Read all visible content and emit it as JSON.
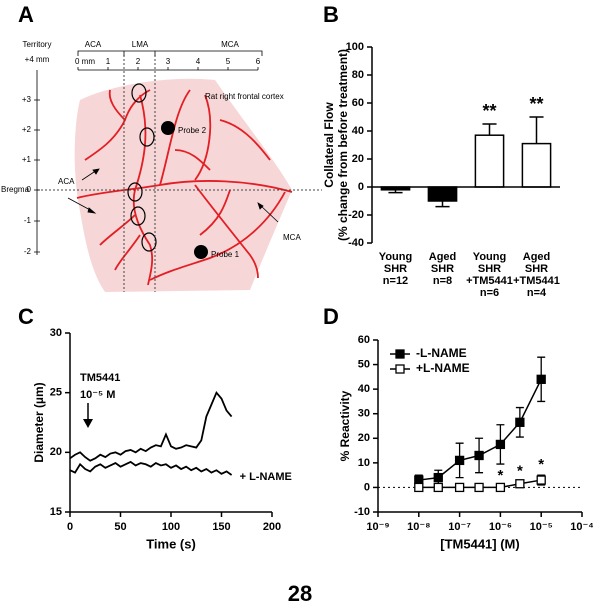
{
  "diagram": {
    "panel": "A",
    "territory_label": "Territory",
    "top_mark": "+4 mm",
    "territories": [
      "ACA",
      "LMA",
      "MCA"
    ],
    "scale_labels": [
      "0 mm",
      "1",
      "2",
      "3",
      "4",
      "5",
      "6"
    ],
    "region_label": "Rat right frontal cortex",
    "y_labels": [
      "+3",
      "+2",
      "+1",
      "0",
      "-1",
      "-2"
    ],
    "bregma_label": "Bregma",
    "vessel_labels": [
      "ACA",
      "MCA"
    ],
    "probes": [
      "Probe 2",
      "Probe 1"
    ]
  },
  "chart_data": [
    {
      "type": "bar",
      "panel": "B",
      "ylabel": [
        "Collateral Flow",
        "(% change from before treatment)"
      ],
      "categories": [
        [
          "Young",
          "SHR",
          "n=12"
        ],
        [
          "Aged",
          "SHR",
          "n=8"
        ],
        [
          "Young",
          "SHR",
          "+TM5441",
          "n=6"
        ],
        [
          "Aged",
          "SHR",
          "+TM5441",
          "n=4"
        ]
      ],
      "values": [
        -2,
        -10,
        37,
        31
      ],
      "errors": [
        2,
        4,
        8,
        19
      ],
      "colors": [
        "#000000",
        "#000000",
        "#ffffff",
        "#ffffff"
      ],
      "annotations": [
        null,
        null,
        "**",
        "**"
      ],
      "ylim": [
        -40,
        100
      ],
      "yticks": [
        -40,
        -20,
        0,
        20,
        40,
        60,
        80,
        100
      ]
    },
    {
      "type": "line",
      "panel": "C",
      "xlabel": "Time (s)",
      "ylabel": "Diameter (µm)",
      "annotations": [
        "TM5441",
        "10⁻⁵ M"
      ],
      "x": [
        0,
        5,
        10,
        15,
        20,
        25,
        30,
        35,
        40,
        45,
        50,
        55,
        60,
        65,
        70,
        75,
        80,
        85,
        90,
        95,
        100,
        105,
        110,
        115,
        120,
        125,
        130,
        135,
        140,
        145,
        150,
        155,
        160
      ],
      "series": [
        {
          "color": "#000000",
          "values": [
            19.5,
            19.8,
            20.0,
            19.6,
            19.3,
            19.5,
            19.8,
            19.6,
            19.9,
            20.0,
            19.8,
            20.1,
            20.2,
            20.0,
            20.3,
            20.1,
            20.4,
            20.6,
            20.5,
            21.5,
            20.5,
            20.3,
            20.4,
            20.6,
            20.5,
            20.4,
            21.0,
            23.0,
            24.0,
            25.0,
            24.5,
            23.5,
            23.0
          ]
        },
        {
          "name": "+ L-NAME",
          "color": "#000000",
          "values": [
            18.5,
            18.3,
            19.0,
            18.6,
            18.4,
            18.8,
            19.0,
            18.7,
            18.9,
            19.1,
            18.8,
            19.0,
            19.2,
            18.9,
            19.1,
            19.0,
            18.8,
            19.1,
            18.9,
            19.0,
            18.7,
            18.9,
            18.6,
            18.8,
            18.5,
            18.7,
            18.4,
            18.6,
            18.3,
            18.5,
            18.2,
            18.4,
            18.1
          ]
        }
      ],
      "xlim": [
        0,
        200
      ],
      "xticks": [
        0,
        50,
        100,
        150,
        200
      ],
      "ylim": [
        15,
        30
      ],
      "yticks": [
        15,
        20,
        25,
        30
      ]
    },
    {
      "type": "line",
      "panel": "D",
      "xlabel": "[TM5441] (M)",
      "ylabel": "% Reactivity",
      "xscale": "log",
      "legend": "upper left",
      "reference_line": 0,
      "x": [
        1e-08,
        3e-08,
        1e-07,
        3e-07,
        1e-06,
        3e-06,
        1e-05
      ],
      "series": [
        {
          "name": "-L-NAME",
          "color": "#000000",
          "marker": "filled",
          "values": [
            3,
            4,
            11,
            13,
            17.5,
            26.5,
            44
          ],
          "errors": [
            2,
            3,
            7,
            7,
            8,
            6,
            9
          ]
        },
        {
          "name": "+L-NAME",
          "color": "#000000",
          "marker": "open",
          "values": [
            0,
            0,
            0,
            0,
            0,
            1.5,
            3
          ],
          "errors": [
            0.5,
            0.5,
            0.5,
            0.5,
            0.5,
            1,
            2
          ],
          "annotations": [
            null,
            null,
            null,
            null,
            "*",
            "*",
            "*"
          ]
        }
      ],
      "xlim": [
        1e-09,
        0.0001
      ],
      "xticks": [
        {
          "value": 1e-09,
          "label": "10⁻⁹"
        },
        {
          "value": 1e-08,
          "label": "10⁻⁸"
        },
        {
          "value": 1e-07,
          "label": "10⁻⁷"
        },
        {
          "value": 1e-06,
          "label": "10⁻⁶"
        },
        {
          "value": 1e-05,
          "label": "10⁻⁵"
        },
        {
          "value": 0.0001,
          "label": "10⁻⁴"
        }
      ],
      "ylim": [
        -10,
        60
      ],
      "yticks": [
        -10,
        0,
        10,
        20,
        30,
        40,
        50,
        60
      ]
    }
  ],
  "page_number": "28"
}
